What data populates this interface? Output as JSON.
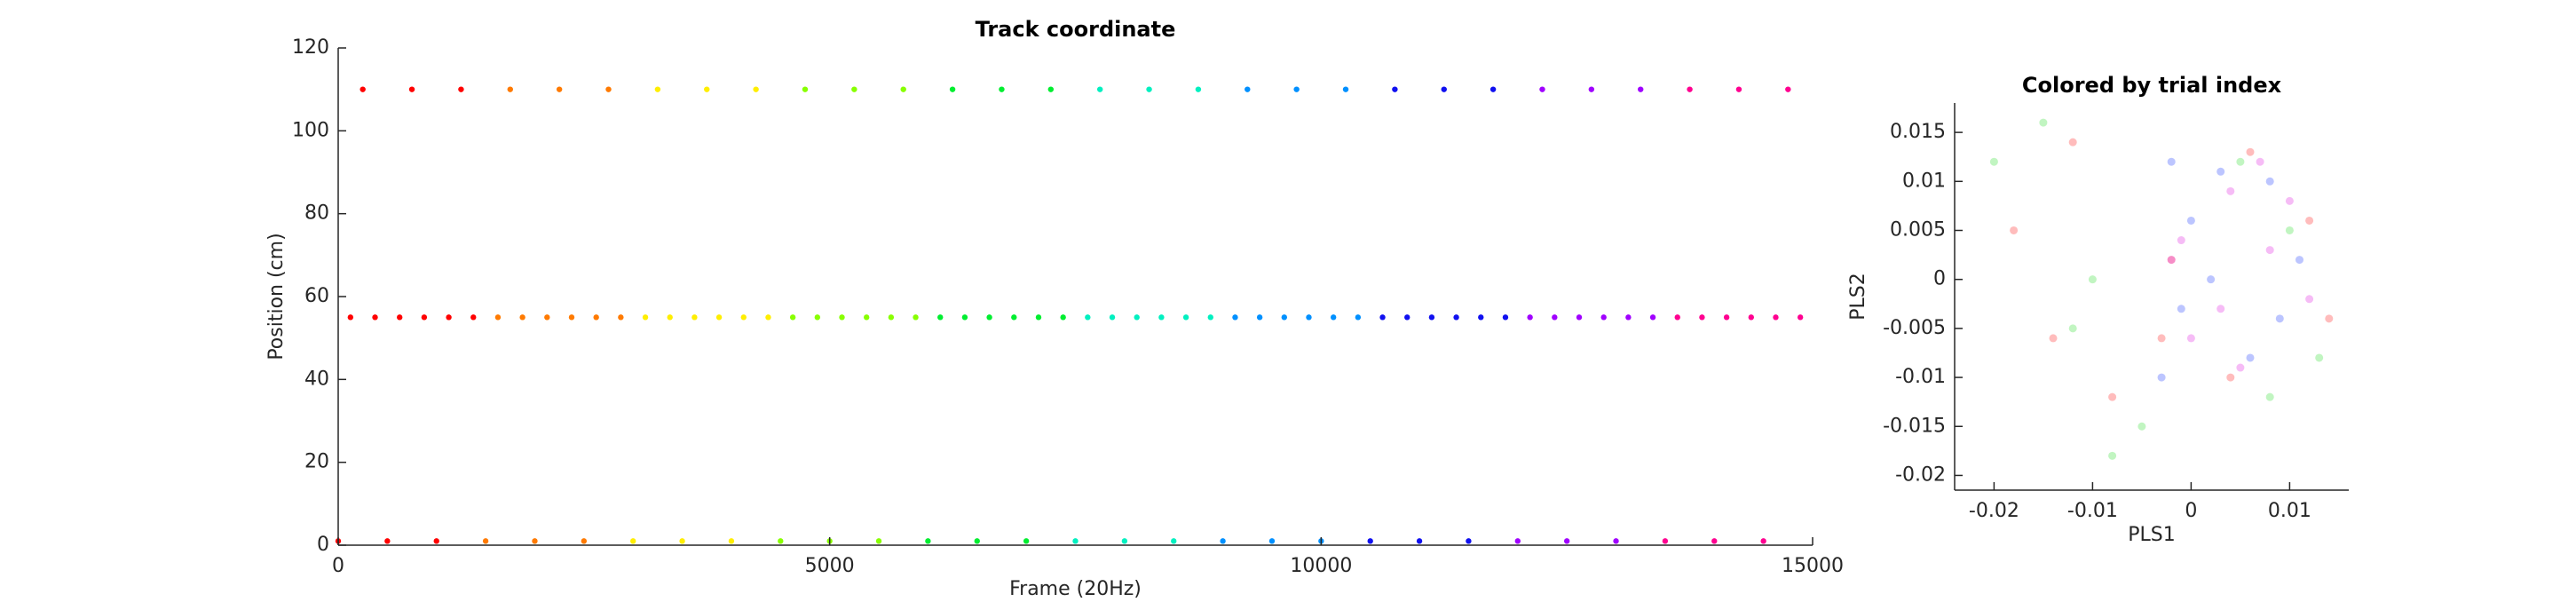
{
  "chart_data": [
    {
      "type": "scatter",
      "title": "Track coordinate",
      "xlabel": "Frame (20Hz)",
      "ylabel": "Position (cm)",
      "xlim": [
        0,
        15000
      ],
      "ylim": [
        0,
        120
      ],
      "xticks": [
        0,
        5000,
        10000,
        15000
      ],
      "yticks": [
        0,
        20,
        40,
        60,
        80,
        100,
        120
      ],
      "grid": false,
      "alpha": 1,
      "series": [
        {
          "color": "#ff0000",
          "x": [
            0,
            125,
            250,
            375,
            500,
            625,
            750,
            875,
            1000,
            1125,
            1250,
            1375
          ],
          "y": [
            1,
            55,
            110,
            55,
            1,
            55,
            110,
            55,
            1,
            55,
            110,
            55
          ]
        },
        {
          "color": "#ff7a00",
          "x": [
            1500,
            1625,
            1750,
            1875,
            2000,
            2125,
            2250,
            2375,
            2500,
            2625,
            2750,
            2875
          ],
          "y": [
            1,
            55,
            110,
            55,
            1,
            55,
            110,
            55,
            1,
            55,
            110,
            55
          ]
        },
        {
          "color": "#ffee00",
          "x": [
            3000,
            3125,
            3250,
            3375,
            3500,
            3625,
            3750,
            3875,
            4000,
            4125,
            4250,
            4375
          ],
          "y": [
            1,
            55,
            110,
            55,
            1,
            55,
            110,
            55,
            1,
            55,
            110,
            55
          ]
        },
        {
          "color": "#88ff00",
          "x": [
            4500,
            4625,
            4750,
            4875,
            5000,
            5125,
            5250,
            5375,
            5500,
            5625,
            5750,
            5875
          ],
          "y": [
            1,
            55,
            110,
            55,
            1,
            55,
            110,
            55,
            1,
            55,
            110,
            55
          ]
        },
        {
          "color": "#00ee30",
          "x": [
            6000,
            6125,
            6250,
            6375,
            6500,
            6625,
            6750,
            6875,
            7000,
            7125,
            7250,
            7375
          ],
          "y": [
            1,
            55,
            110,
            55,
            1,
            55,
            110,
            55,
            1,
            55,
            110,
            55
          ]
        },
        {
          "color": "#00f0c0",
          "x": [
            7500,
            7625,
            7750,
            7875,
            8000,
            8125,
            8250,
            8375,
            8500,
            8625,
            8750,
            8875
          ],
          "y": [
            1,
            55,
            110,
            55,
            1,
            55,
            110,
            55,
            1,
            55,
            110,
            55
          ]
        },
        {
          "color": "#0090ff",
          "x": [
            9000,
            9125,
            9250,
            9375,
            9500,
            9625,
            9750,
            9875,
            10000,
            10125,
            10250,
            10375
          ],
          "y": [
            1,
            55,
            110,
            55,
            1,
            55,
            110,
            55,
            1,
            55,
            110,
            55
          ]
        },
        {
          "color": "#1010f0",
          "x": [
            10500,
            10625,
            10750,
            10875,
            11000,
            11125,
            11250,
            11375,
            11500,
            11625,
            11750,
            11875
          ],
          "y": [
            1,
            55,
            110,
            55,
            1,
            55,
            110,
            55,
            1,
            55,
            110,
            55
          ]
        },
        {
          "color": "#a000ff",
          "x": [
            12000,
            12125,
            12250,
            12375,
            12500,
            12625,
            12750,
            12875,
            13000,
            13125,
            13250,
            13375
          ],
          "y": [
            1,
            55,
            110,
            55,
            1,
            55,
            110,
            55,
            1,
            55,
            110,
            55
          ]
        },
        {
          "color": "#ff0090",
          "x": [
            13500,
            13625,
            13750,
            13875,
            14000,
            14125,
            14250,
            14375,
            14500,
            14625,
            14750,
            14875
          ],
          "y": [
            1,
            55,
            110,
            55,
            1,
            55,
            110,
            55,
            1,
            55,
            110,
            55
          ]
        }
      ]
    },
    {
      "type": "scatter",
      "title": "Colored by trial index",
      "xlabel": "PLS1",
      "ylabel": "PLS2",
      "xlim": [
        -0.024,
        0.016
      ],
      "ylim": [
        -0.0215,
        0.018
      ],
      "xticks": [
        -0.02,
        -0.01,
        0,
        0.01
      ],
      "yticks": [
        -0.02,
        -0.015,
        -0.01,
        -0.005,
        0,
        0.005,
        0.01,
        0.015
      ],
      "grid": false,
      "alpha": 0.3,
      "series": [
        {
          "color": "#33dd33",
          "x": [
            -0.02,
            -0.015,
            -0.012,
            -0.008,
            0.005,
            0.01,
            0.013,
            0.008,
            -0.005,
            -0.01
          ],
          "y": [
            0.012,
            0.016,
            -0.005,
            -0.018,
            0.012,
            0.005,
            -0.008,
            -0.012,
            -0.015,
            0.0
          ]
        },
        {
          "color": "#ff2020",
          "x": [
            -0.018,
            -0.012,
            -0.002,
            0.006,
            0.012,
            0.014,
            0.004,
            -0.003,
            -0.008,
            -0.014
          ],
          "y": [
            0.005,
            0.014,
            0.002,
            0.013,
            0.006,
            -0.004,
            -0.01,
            -0.006,
            -0.012,
            -0.006
          ]
        },
        {
          "color": "#2040ff",
          "x": [
            -0.002,
            0.0,
            0.003,
            0.008,
            0.011,
            0.006,
            -0.001,
            -0.003,
            0.002,
            0.009
          ],
          "y": [
            0.012,
            0.006,
            0.011,
            0.01,
            0.002,
            -0.008,
            -0.003,
            -0.01,
            0.0,
            -0.004
          ]
        },
        {
          "color": "#e020e0",
          "x": [
            -0.001,
            0.004,
            0.007,
            0.01,
            0.012,
            0.005,
            0.0,
            -0.002,
            0.008,
            0.003
          ],
          "y": [
            0.004,
            0.009,
            0.012,
            0.008,
            -0.002,
            -0.009,
            -0.006,
            0.002,
            0.003,
            -0.003
          ]
        }
      ]
    }
  ]
}
